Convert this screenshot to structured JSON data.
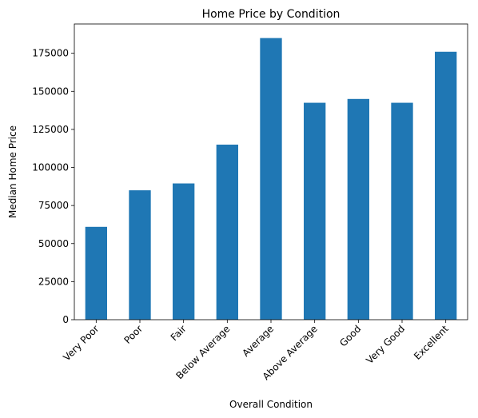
{
  "chart_data": {
    "type": "bar",
    "title": "Home Price by Condition",
    "xlabel": "Overall Condition",
    "ylabel": "Median Home Price",
    "categories": [
      "Very Poor",
      "Poor",
      "Fair",
      "Below Average",
      "Average",
      "Above Average",
      "Good",
      "Very Good",
      "Excellent"
    ],
    "values": [
      61000,
      85000,
      89500,
      115000,
      185000,
      142500,
      145000,
      142500,
      176000
    ],
    "ylim": [
      0,
      194250
    ],
    "yticks": [
      0,
      25000,
      50000,
      75000,
      100000,
      125000,
      150000,
      175000
    ],
    "bar_color": "#1f77b4",
    "grid": false,
    "legend": "none"
  }
}
